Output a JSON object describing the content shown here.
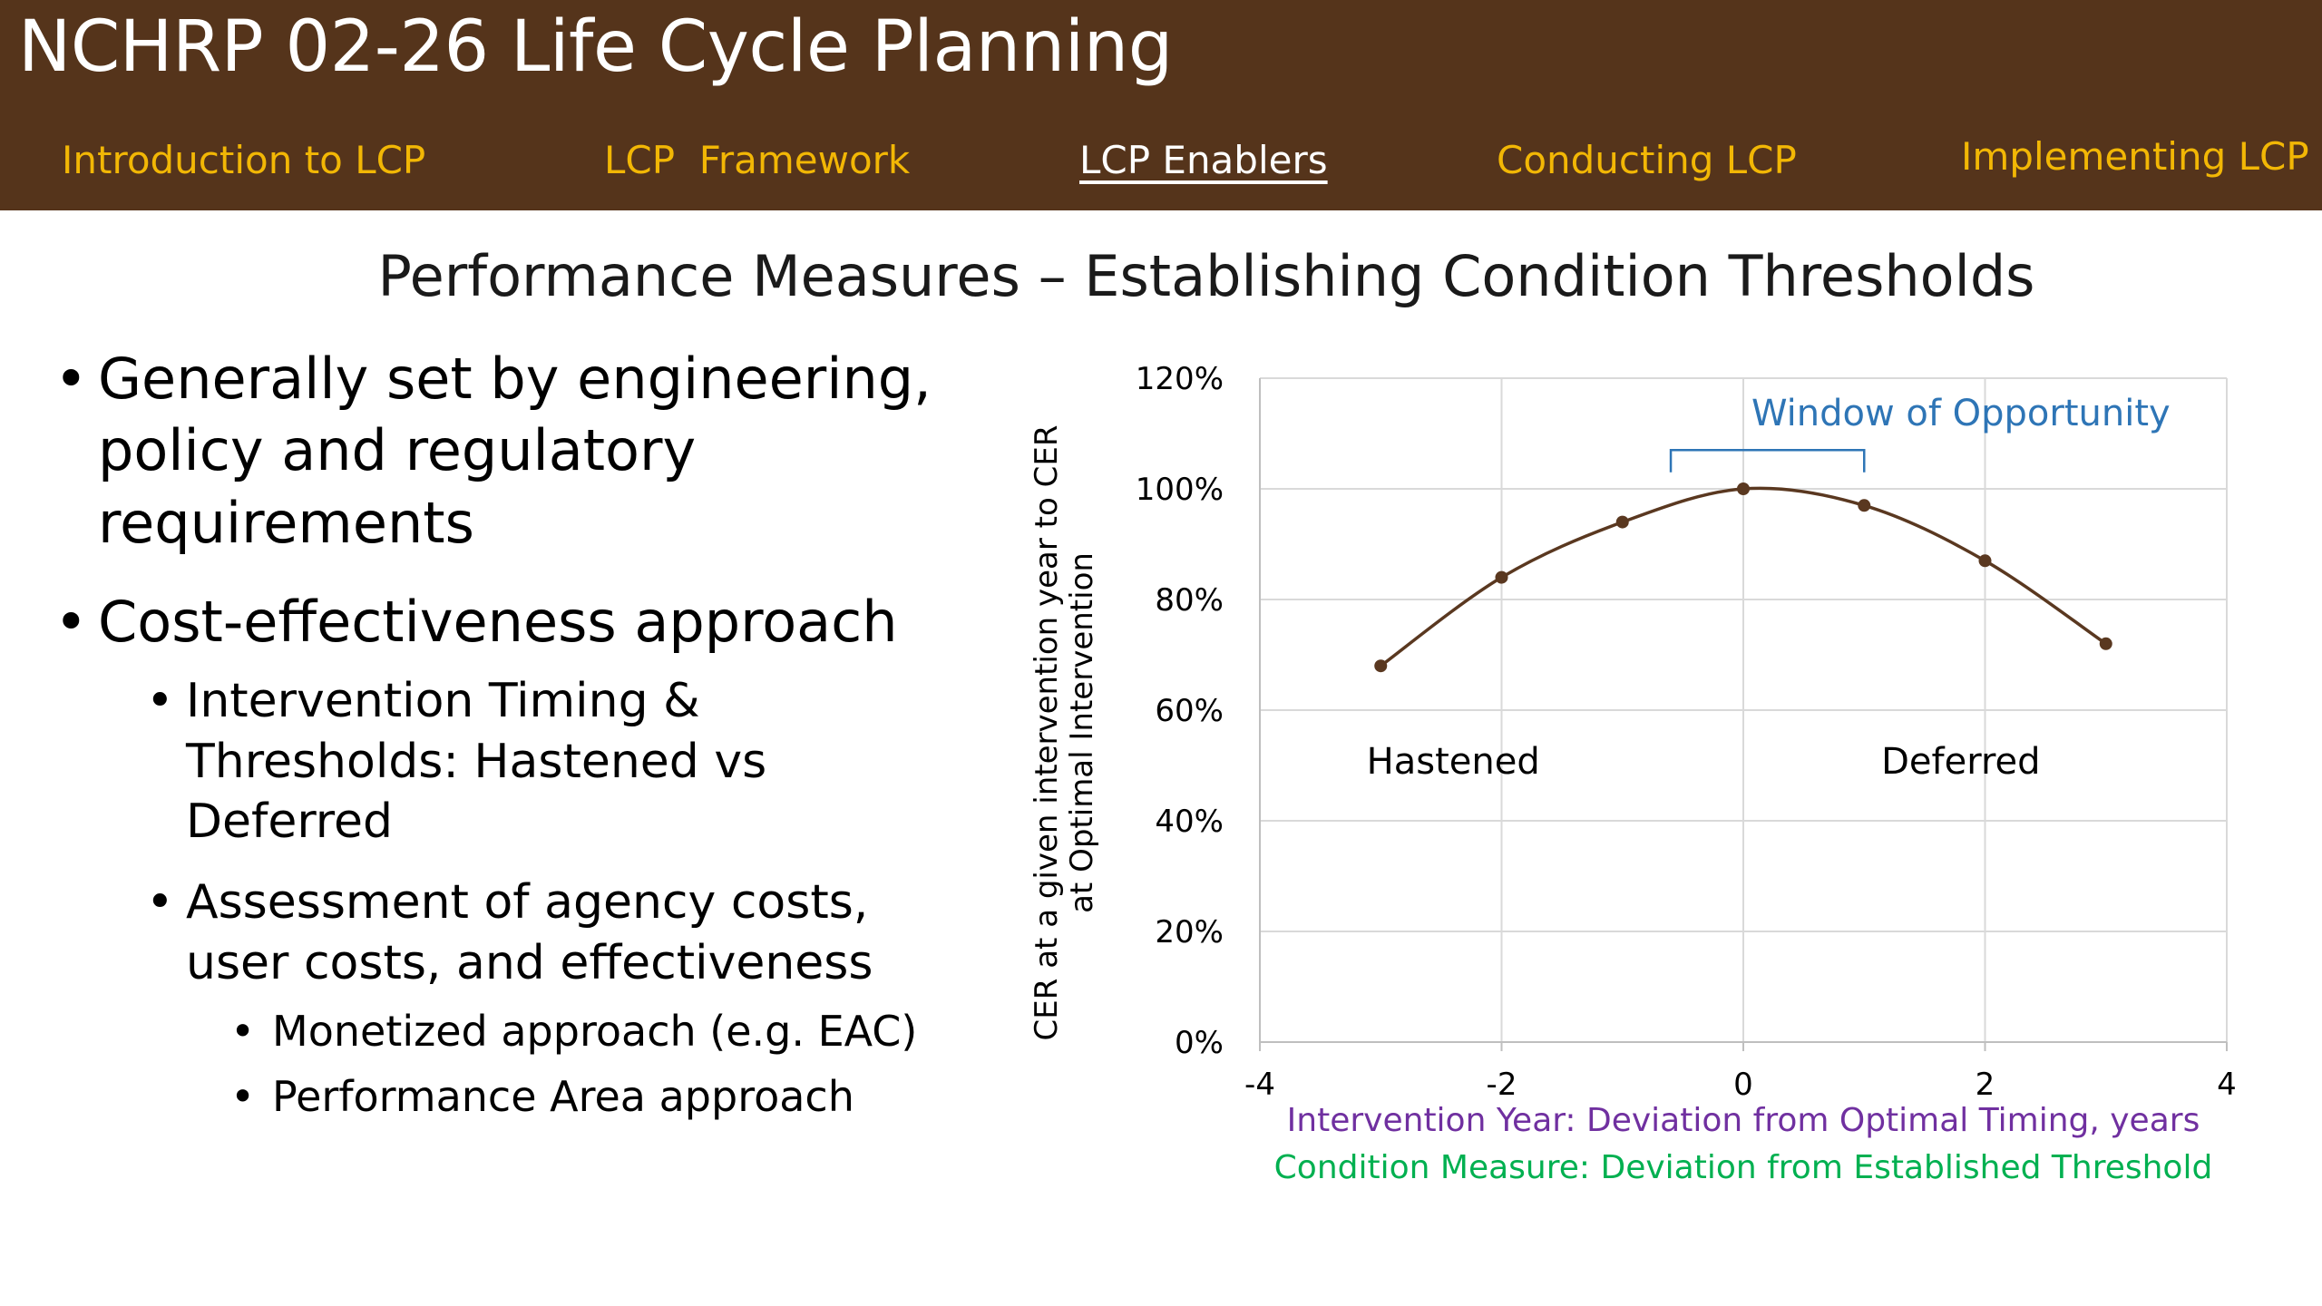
{
  "header": {
    "title": "NCHRP 02-26 Life Cycle Planning",
    "nav": [
      {
        "label": "Introduction to LCP",
        "active": false
      },
      {
        "label": "LCP  Framework",
        "active": false
      },
      {
        "label": "LCP Enablers",
        "active": true
      },
      {
        "label": "Conducting LCP",
        "active": false
      },
      {
        "label": "Implementing LCP",
        "active": false
      }
    ]
  },
  "slide": {
    "title": "Performance Measures – Establishing Condition Thresholds",
    "bullets": {
      "b1": "Generally set by engineering, policy and regulatory requirements",
      "b2": "Cost-effectiveness approach",
      "b2a": "Intervention Timing & Thresholds: Hastened vs Deferred",
      "b2b": "Assessment of agency costs, user costs, and effectiveness",
      "b2b1": "Monetized approach (e.g. EAC)",
      "b2b2": "Performance Area approach"
    }
  },
  "colors": {
    "header_bg": "#55341b",
    "nav_text": "#f2b705",
    "series_line": "#5a3820",
    "window_label": "#2e75b6",
    "xlabel_primary": "#7030a0",
    "xlabel_secondary": "#00b050"
  },
  "chart_data": {
    "type": "line",
    "title": "",
    "ylabel": "CER at a given intervention year to CER at Optimal Intervention",
    "xlabel": "Intervention Year: Deviation from Optimal Timing, years",
    "xlabel_secondary": "Condition Measure: Deviation from Established Threshold",
    "xlim": [
      -4,
      4
    ],
    "ylim": [
      0,
      1.2
    ],
    "xticks": [
      "-4",
      "-2",
      "0",
      "2",
      "4"
    ],
    "yticks": [
      "0%",
      "20%",
      "40%",
      "60%",
      "80%",
      "100%",
      "120%"
    ],
    "grid": true,
    "series": [
      {
        "x": [
          -3,
          -2,
          -1,
          0,
          1,
          2,
          3
        ],
        "y": [
          0.68,
          0.84,
          0.94,
          1.0,
          0.97,
          0.87,
          0.72
        ]
      }
    ],
    "annotations": {
      "hastened": "Hastened",
      "deferred": "Deferred",
      "window": "Window of Opportunity",
      "window_range": [
        -0.6,
        1.0
      ]
    }
  }
}
